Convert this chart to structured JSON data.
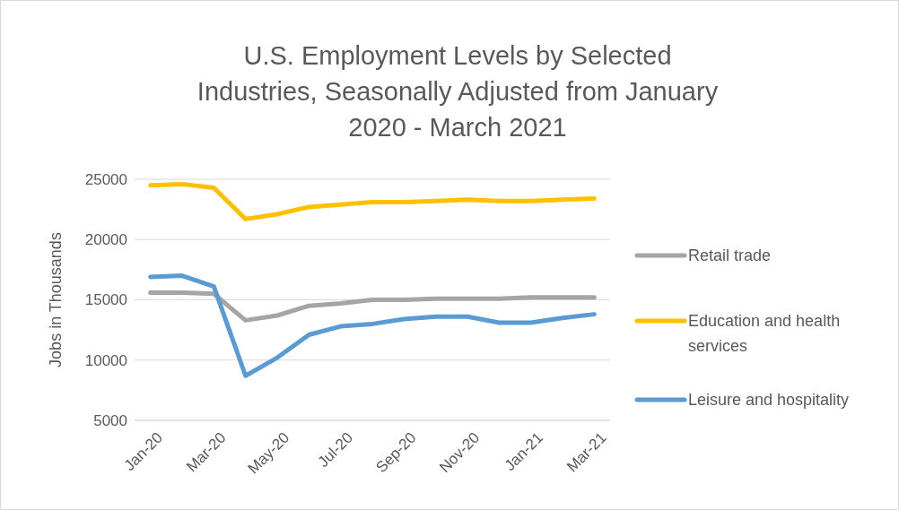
{
  "chart_data": {
    "type": "line",
    "title": "U.S. Employment Levels by Selected Industries, Seasonally Adjusted from January 2020 - March 2021",
    "ylabel": "Jobs in Thousands",
    "categories": [
      "Jan-20",
      null,
      "Mar-20",
      null,
      "May-20",
      null,
      "Jul-20",
      null,
      "Sep-20",
      null,
      "Nov-20",
      null,
      "Jan-21",
      null,
      "Mar-21"
    ],
    "series": [
      {
        "name": "Retail trade",
        "color": "#a5a5a5",
        "values": [
          15600,
          15600,
          15500,
          13300,
          13700,
          14500,
          14700,
          15000,
          15000,
          15100,
          15100,
          15100,
          15200,
          15200,
          15200
        ]
      },
      {
        "name": "Education and health services",
        "color": "#ffc000",
        "values": [
          24500,
          24600,
          24300,
          21700,
          22100,
          22700,
          22900,
          23100,
          23100,
          23200,
          23300,
          23200,
          23200,
          23300,
          23400
        ]
      },
      {
        "name": "Leisure and hospitality",
        "color": "#5b9bd5",
        "values": [
          16900,
          17000,
          16100,
          8700,
          10200,
          12100,
          12800,
          13000,
          13400,
          13600,
          13600,
          13100,
          13100,
          13500,
          13800
        ]
      }
    ],
    "ylim": [
      5000,
      25000
    ],
    "yticks": [
      5000,
      10000,
      15000,
      20000,
      25000
    ],
    "grid": "y",
    "legend": "right",
    "marker": "none",
    "line_style": "solid"
  }
}
